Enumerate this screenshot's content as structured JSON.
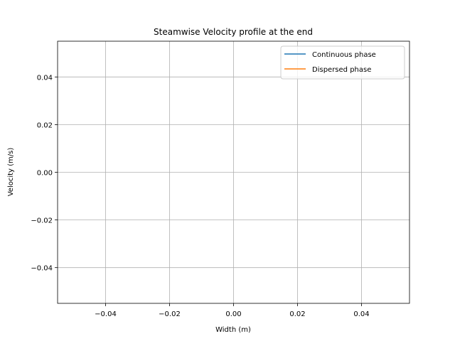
{
  "chart_data": {
    "type": "line",
    "title": "Steamwise Velocity profile at the end",
    "xlabel": "Width (m)",
    "ylabel": "Velocity (m/s)",
    "xlim": [
      -0.055,
      0.055
    ],
    "ylim": [
      -0.055,
      0.055
    ],
    "xticks": [
      -0.04,
      -0.02,
      0.0,
      0.02,
      0.04
    ],
    "xtick_labels": [
      "−0.04",
      "−0.02",
      "0.00",
      "0.02",
      "0.04"
    ],
    "yticks": [
      -0.04,
      -0.02,
      0.0,
      0.02,
      0.04
    ],
    "ytick_labels": [
      "−0.04",
      "−0.02",
      "0.00",
      "0.02",
      "0.04"
    ],
    "grid": true,
    "legend_position": "top-right",
    "series": [
      {
        "name": "Continuous phase",
        "color": "#1f77b4",
        "x": [],
        "y": []
      },
      {
        "name": "Dispersed phase",
        "color": "#ff7f0e",
        "x": [],
        "y": []
      }
    ]
  }
}
